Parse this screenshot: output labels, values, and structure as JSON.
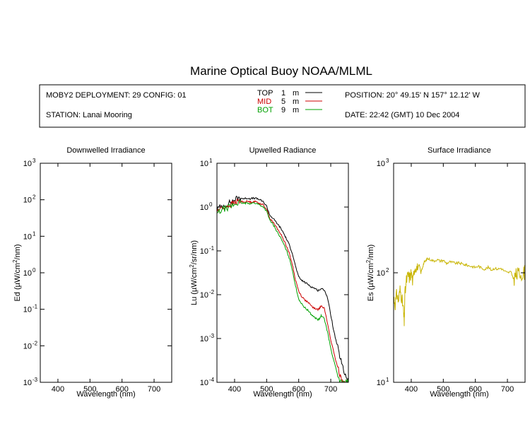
{
  "title": "Marine Optical Buoy NOAA/MLML",
  "info": {
    "deployment": "MOBY2 DEPLOYMENT: 29 CONFIG: 01",
    "station": "STATION: Lanai Mooring",
    "position": "POSITION: 20° 49.15' N   157° 12.12' W",
    "date": "DATE: 22:42 (GMT) 10 Dec 2004"
  },
  "legend": [
    {
      "name": "TOP",
      "depth": "1",
      "unit": "m",
      "color": "#000000"
    },
    {
      "name": "MID",
      "depth": "5",
      "unit": "m",
      "color": "#cc0000"
    },
    {
      "name": "BOT",
      "depth": "9",
      "unit": "m",
      "color": "#00a000"
    }
  ],
  "chart_data": [
    {
      "type": "line",
      "title": "Downwelled Irradiance",
      "xlabel": "Wavelength (nm)",
      "ylabel": "Ed  (µW/cm²/nm)",
      "xlim": [
        345,
        755
      ],
      "ylim": [
        0.001,
        1000
      ],
      "yscale": "log",
      "xticks": [
        400,
        500,
        600,
        700
      ],
      "ytick_exponents": [
        -3,
        -2,
        -1,
        0,
        1,
        2,
        3
      ],
      "series": []
    },
    {
      "type": "line",
      "title": "Upwelled Radiance",
      "xlabel": "Wavelength (nm)",
      "ylabel": "Lu  (µW/cm²/sr/nm)",
      "xlim": [
        345,
        755
      ],
      "ylim": [
        0.0001,
        10
      ],
      "yscale": "log",
      "xticks": [
        400,
        500,
        600,
        700
      ],
      "ytick_exponents": [
        -4,
        -3,
        -2,
        -1,
        0,
        1
      ],
      "series": [
        {
          "color": "#000000",
          "x": [
            345,
            360,
            375,
            390,
            400,
            410,
            420,
            430,
            440,
            450,
            460,
            470,
            480,
            490,
            500,
            510,
            520,
            530,
            540,
            550,
            560,
            570,
            580,
            590,
            600,
            610,
            620,
            630,
            640,
            650,
            660,
            670,
            680,
            690,
            700,
            710,
            720,
            730,
            740,
            750,
            755
          ],
          "y": [
            0.9,
            1.05,
            1.15,
            1.3,
            1.45,
            1.6,
            1.6,
            1.55,
            1.6,
            1.55,
            1.6,
            1.55,
            1.45,
            1.3,
            1.05,
            0.65,
            0.55,
            0.45,
            0.36,
            0.28,
            0.2,
            0.14,
            0.09,
            0.045,
            0.025,
            0.021,
            0.019,
            0.017,
            0.015,
            0.014,
            0.0125,
            0.0135,
            0.013,
            0.0085,
            0.0035,
            0.0014,
            0.0007,
            0.00035,
            0.00018,
            0.00013,
            0.00011
          ]
        },
        {
          "color": "#cc0000",
          "x": [
            345,
            360,
            375,
            390,
            400,
            410,
            420,
            430,
            440,
            450,
            460,
            470,
            480,
            490,
            500,
            510,
            520,
            530,
            540,
            550,
            560,
            570,
            580,
            590,
            600,
            610,
            620,
            630,
            640,
            650,
            660,
            665,
            670,
            680,
            690,
            700,
            710,
            720,
            730,
            740,
            750,
            755
          ],
          "y": [
            0.8,
            0.95,
            1.05,
            1.15,
            1.25,
            1.35,
            1.35,
            1.3,
            1.35,
            1.3,
            1.35,
            1.3,
            1.2,
            1.1,
            0.9,
            0.55,
            0.45,
            0.35,
            0.27,
            0.2,
            0.14,
            0.09,
            0.05,
            0.022,
            0.012,
            0.009,
            0.0075,
            0.0065,
            0.0055,
            0.0048,
            0.0046,
            0.0048,
            0.0058,
            0.0048,
            0.0022,
            0.00095,
            0.00045,
            0.00024,
            0.00014,
            0.0001,
            0.0001,
            0.0001
          ]
        },
        {
          "color": "#00a000",
          "x": [
            345,
            360,
            375,
            390,
            400,
            410,
            420,
            430,
            440,
            450,
            460,
            470,
            480,
            490,
            500,
            510,
            520,
            530,
            540,
            550,
            560,
            570,
            580,
            590,
            600,
            610,
            620,
            630,
            640,
            650,
            660,
            665,
            670,
            680,
            690,
            700,
            710,
            720,
            730,
            740,
            750,
            755
          ],
          "y": [
            0.7,
            0.85,
            0.95,
            1.05,
            1.15,
            1.25,
            1.25,
            1.2,
            1.25,
            1.2,
            1.25,
            1.2,
            1.1,
            1.0,
            0.8,
            0.5,
            0.4,
            0.3,
            0.22,
            0.16,
            0.11,
            0.07,
            0.038,
            0.016,
            0.008,
            0.006,
            0.005,
            0.0043,
            0.0035,
            0.003,
            0.0027,
            0.0028,
            0.0033,
            0.0028,
            0.0014,
            0.0006,
            0.0003,
            0.00016,
            0.0001,
            0.0001,
            0.0001,
            0.0001
          ]
        }
      ]
    },
    {
      "type": "line",
      "title": "Surface Irradiance",
      "xlabel": "Wavelength (nm)",
      "ylabel": "Es  (µW/cm²/nm)",
      "xlim": [
        345,
        755
      ],
      "ylim": [
        10,
        1000
      ],
      "yscale": "log",
      "xticks": [
        400,
        500,
        600,
        700
      ],
      "ytick_exponents": [
        1,
        2,
        3
      ],
      "series": [
        {
          "color": "#c8b400",
          "x": [
            345,
            350,
            355,
            360,
            365,
            370,
            375,
            378,
            380,
            385,
            390,
            395,
            400,
            405,
            410,
            415,
            420,
            425,
            430,
            435,
            440,
            445,
            450,
            460,
            470,
            480,
            490,
            500,
            510,
            520,
            530,
            540,
            550,
            560,
            570,
            580,
            590,
            600,
            610,
            620,
            630,
            640,
            650,
            660,
            670,
            680,
            690,
            700,
            710,
            720,
            725,
            730,
            740,
            750,
            755
          ],
          "y": [
            60,
            52,
            65,
            55,
            70,
            60,
            48,
            34,
            62,
            85,
            95,
            90,
            100,
            82,
            110,
            115,
            108,
            118,
            100,
            112,
            125,
            128,
            135,
            132,
            128,
            132,
            128,
            130,
            122,
            126,
            124,
            122,
            123,
            120,
            118,
            116,
            114,
            112,
            115,
            110,
            108,
            112,
            106,
            110,
            108,
            110,
            104,
            100,
            102,
            88,
            94,
            96,
            98,
            100,
            102
          ]
        }
      ]
    }
  ]
}
